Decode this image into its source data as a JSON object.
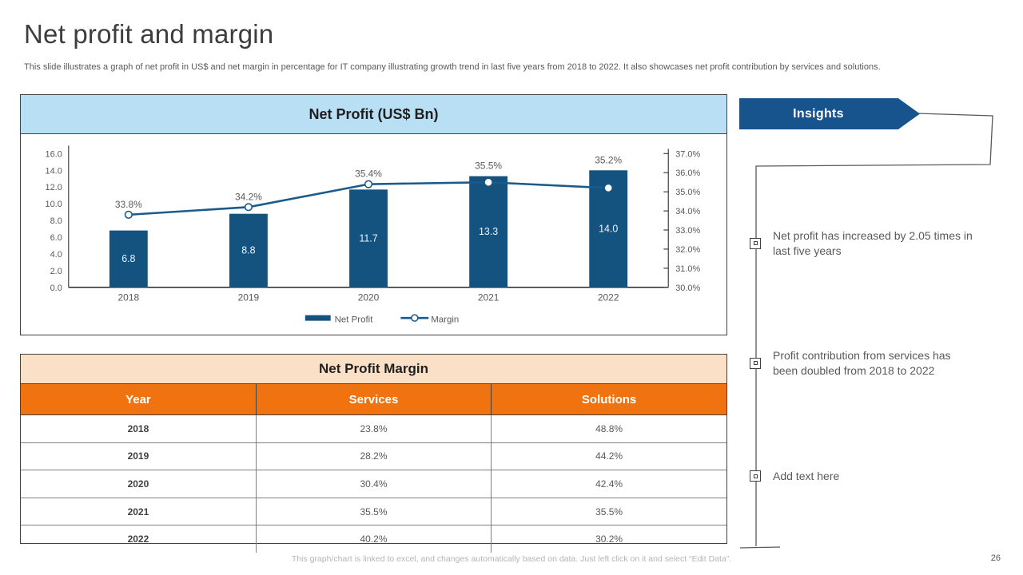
{
  "slide": {
    "title": "Net profit and margin",
    "subtitle": "This slide illustrates a graph of net profit in US$ and net margin in percentage for IT company illustrating growth trend in last five years from 2018 to 2022. It also showcases net profit contribution by services and solutions.",
    "footer": "This graph/chart is linked to excel, and changes automatically based on data. Just left click on it and select “Edit Data”.",
    "page_number": "26"
  },
  "chart_panel": {
    "title": "Net Profit (US$ Bn)"
  },
  "chart_data": {
    "type": "combo-bar-line",
    "title": "Net Profit (US$ Bn)",
    "categories": [
      "2018",
      "2019",
      "2020",
      "2021",
      "2022"
    ],
    "series": [
      {
        "name": "Net Profit",
        "type": "bar",
        "axis": "left",
        "values": [
          6.8,
          8.8,
          11.7,
          13.3,
          14.0
        ],
        "labels": [
          "6.8",
          "8.8",
          "11.7",
          "13.3",
          "14.0"
        ]
      },
      {
        "name": "Margin",
        "type": "line",
        "axis": "right",
        "values": [
          33.8,
          34.2,
          35.4,
          35.5,
          35.2
        ],
        "labels": [
          "33.8%",
          "34.2%",
          "35.4%",
          "35.5%",
          "35.2%"
        ]
      }
    ],
    "left_axis": {
      "min": 0,
      "max": 16,
      "step": 2
    },
    "right_axis": {
      "min": 30,
      "max": 37,
      "step": 1,
      "suffix": "%"
    },
    "legend": [
      "Net Profit",
      "Margin"
    ],
    "legend_position": "bottom",
    "grid": false
  },
  "table": {
    "title": "Net Profit Margin",
    "columns": [
      "Year",
      "Services",
      "Solutions"
    ],
    "rows": [
      [
        "2018",
        "23.8%",
        "48.8%"
      ],
      [
        "2019",
        "28.2%",
        "44.2%"
      ],
      [
        "2020",
        "30.4%",
        "42.4%"
      ],
      [
        "2021",
        "35.5%",
        "35.5%"
      ],
      [
        "2022",
        "40.2%",
        "30.2%"
      ]
    ]
  },
  "insights": {
    "title": "Insights",
    "items": [
      "Net profit has increased by 2.05 times in last five years",
      "Profit contribution from services has been doubled from 2018 to 2022",
      "Add text here"
    ]
  },
  "colors": {
    "bar": "#14527F",
    "line": "#1A5A8C",
    "banner_blue": "#17538C",
    "chart_header_bg": "#B9DFF5",
    "table_title_bg": "#FBE0C8",
    "table_header_orange": "#F0730F"
  }
}
